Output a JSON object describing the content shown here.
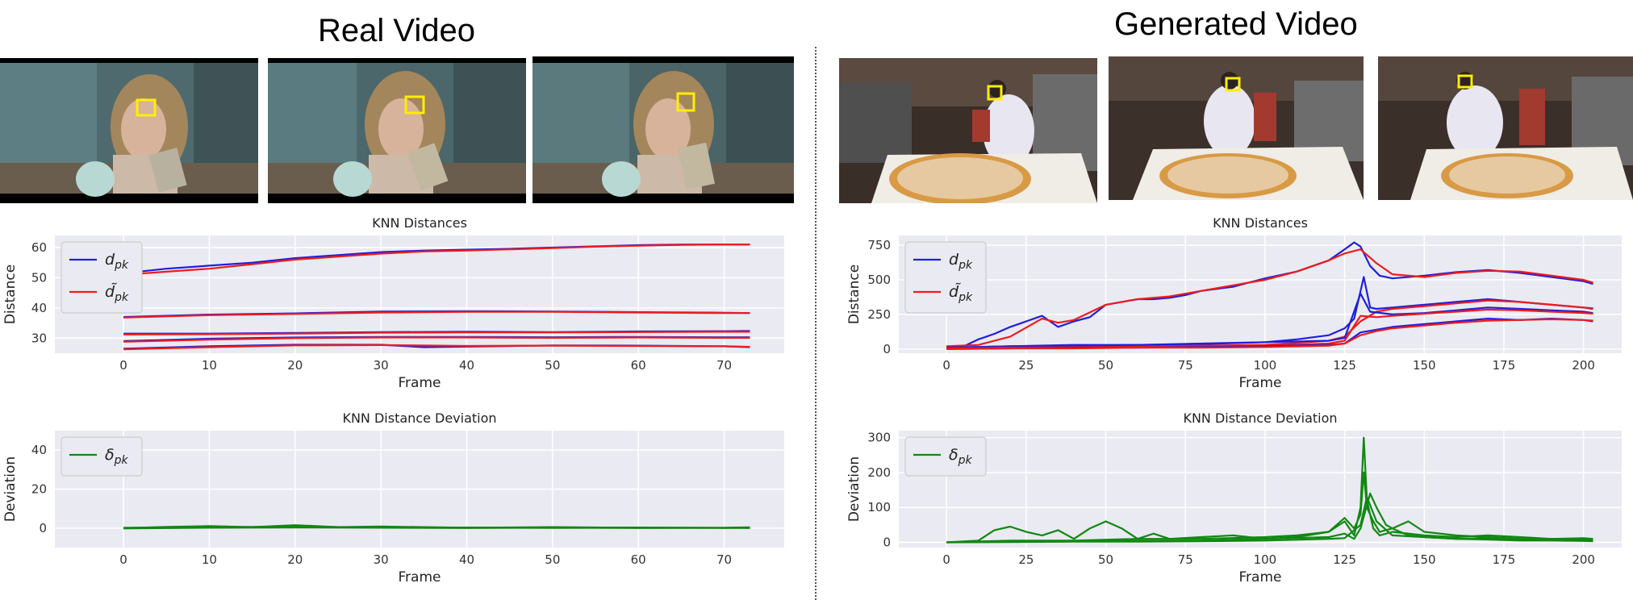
{
  "panels": {
    "left": {
      "title": "Real Video"
    },
    "right": {
      "title": "Generated Video"
    }
  },
  "image_strips": {
    "left": [
      {
        "alt": "woman with glasses holding cup and phone, frame 1"
      },
      {
        "alt": "woman with glasses holding cup and phone, frame 2"
      },
      {
        "alt": "woman with glasses holding cup and phone, frame 3"
      }
    ],
    "right": [
      {
        "alt": "chef in kitchen with pizza, frame 1"
      },
      {
        "alt": "chef in kitchen with pizza, frame 2"
      },
      {
        "alt": "chef in kitchen with pizza, frame 3"
      }
    ]
  },
  "colors": {
    "dist": "#1f1fdd",
    "dist_gen": "#ee1c1c",
    "dev": "#118811",
    "plot_bg": "#eaeaf2",
    "box": "#ffee00"
  },
  "chart_data": [
    {
      "id": "left-dist",
      "type": "line",
      "title": "KNN Distances",
      "xlabel": "Frame",
      "ylabel": "Distance",
      "xlim": [
        -8,
        77
      ],
      "ylim": [
        25,
        64
      ],
      "xticks": [
        0,
        10,
        20,
        30,
        40,
        50,
        60,
        70
      ],
      "yticks": [
        30,
        40,
        50,
        60
      ],
      "grid": true,
      "legend_position": "upper-left",
      "legend": [
        {
          "label": "d",
          "sub": "pk",
          "color": "dist"
        },
        {
          "label": "d̃",
          "sub": "pk",
          "color": "dist_gen"
        }
      ],
      "series": [
        {
          "color": "dist",
          "x": [
            0,
            5,
            10,
            15,
            20,
            25,
            30,
            35,
            40,
            45,
            50,
            55,
            60,
            65,
            70,
            73
          ],
          "y": [
            51.5,
            53,
            54,
            55,
            56.5,
            57.5,
            58.5,
            59,
            59.3,
            59.6,
            60,
            60.4,
            60.8,
            61,
            61,
            61
          ]
        },
        {
          "color": "dist_gen",
          "x": [
            0,
            5,
            10,
            15,
            20,
            25,
            30,
            35,
            40,
            45,
            50,
            55,
            60,
            65,
            70,
            73
          ],
          "y": [
            51,
            52,
            53,
            54.5,
            56,
            57,
            58,
            58.7,
            59,
            59.4,
            59.8,
            60.3,
            60.6,
            60.9,
            61,
            61
          ]
        },
        {
          "color": "dist",
          "x": [
            0,
            10,
            20,
            30,
            40,
            50,
            60,
            70,
            73
          ],
          "y": [
            37,
            37.8,
            38.2,
            38.8,
            38.9,
            38.8,
            38.6,
            38.4,
            38.3
          ]
        },
        {
          "color": "dist_gen",
          "x": [
            0,
            10,
            20,
            30,
            40,
            50,
            60,
            70,
            73
          ],
          "y": [
            36.8,
            37.6,
            38,
            38.5,
            38.7,
            38.7,
            38.5,
            38.3,
            38.3
          ]
        },
        {
          "color": "dist",
          "x": [
            0,
            10,
            20,
            30,
            40,
            50,
            60,
            70,
            73
          ],
          "y": [
            31.5,
            31.5,
            31.7,
            32,
            32.1,
            32,
            32.2,
            32.3,
            32.4
          ]
        },
        {
          "color": "dist_gen",
          "x": [
            0,
            10,
            20,
            30,
            40,
            50,
            60,
            70,
            73
          ],
          "y": [
            31.2,
            31.3,
            31.5,
            31.8,
            31.9,
            31.9,
            32,
            32.1,
            32.1
          ]
        },
        {
          "color": "dist",
          "x": [
            0,
            10,
            20,
            30,
            40,
            50,
            60,
            70,
            73
          ],
          "y": [
            29,
            29.8,
            30.2,
            30.4,
            30.4,
            30.3,
            30.4,
            30.3,
            30.3
          ]
        },
        {
          "color": "dist_gen",
          "x": [
            0,
            10,
            20,
            30,
            40,
            50,
            60,
            70,
            73
          ],
          "y": [
            28.8,
            29.5,
            30,
            30.2,
            30.2,
            30.1,
            30.2,
            30.1,
            30.1
          ]
        },
        {
          "color": "dist",
          "x": [
            0,
            10,
            20,
            30,
            35,
            40,
            50,
            60,
            70,
            73
          ],
          "y": [
            26.5,
            27.3,
            27.8,
            27.8,
            27,
            27.2,
            27.6,
            27.5,
            27.3,
            27
          ]
        },
        {
          "color": "dist_gen",
          "x": [
            0,
            10,
            20,
            30,
            40,
            50,
            60,
            70,
            73
          ],
          "y": [
            26.3,
            27,
            27.6,
            27.7,
            27.4,
            27.5,
            27.4,
            27.3,
            27.1
          ]
        }
      ]
    },
    {
      "id": "left-dev",
      "type": "line",
      "title": "KNN Distance Deviation",
      "xlabel": "Frame",
      "ylabel": "Deviation",
      "xlim": [
        -8,
        77
      ],
      "ylim": [
        -10,
        50
      ],
      "xticks": [
        0,
        10,
        20,
        30,
        40,
        50,
        60,
        70
      ],
      "yticks": [
        0,
        20,
        40
      ],
      "grid": true,
      "legend_position": "upper-left",
      "legend": [
        {
          "label": "δ",
          "sub": "pk",
          "color": "dev"
        }
      ],
      "series": [
        {
          "color": "dev",
          "x": [
            0,
            5,
            10,
            15,
            20,
            25,
            30,
            40,
            50,
            60,
            70,
            73
          ],
          "y": [
            0,
            0.6,
            1,
            0.5,
            1.5,
            0.5,
            0.8,
            0.2,
            0.5,
            0.2,
            0.2,
            0.4
          ]
        },
        {
          "color": "dev",
          "x": [
            0,
            10,
            20,
            30,
            40,
            50,
            60,
            70,
            73
          ],
          "y": [
            0.2,
            0.4,
            0.8,
            0.3,
            0.3,
            0.1,
            0.3,
            0.1,
            0.3
          ]
        },
        {
          "color": "dev",
          "x": [
            0,
            10,
            20,
            30,
            40,
            50,
            60,
            70,
            73
          ],
          "y": [
            -0.2,
            0.2,
            0.3,
            0.2,
            0,
            0.2,
            0,
            0.1,
            0
          ]
        }
      ]
    },
    {
      "id": "right-dist",
      "type": "line",
      "title": "KNN Distances",
      "xlabel": "Frame",
      "ylabel": "Distance",
      "xlim": [
        -15,
        212
      ],
      "ylim": [
        -30,
        820
      ],
      "xticks": [
        0,
        25,
        50,
        75,
        100,
        125,
        150,
        175,
        200
      ],
      "yticks": [
        0,
        250,
        500,
        750
      ],
      "grid": true,
      "legend_position": "upper-left",
      "legend": [
        {
          "label": "d",
          "sub": "pk",
          "color": "dist"
        },
        {
          "label": "d̃",
          "sub": "pk",
          "color": "dist_gen"
        }
      ],
      "series": [
        {
          "color": "dist",
          "x": [
            0,
            5,
            10,
            15,
            20,
            25,
            30,
            35,
            40,
            45,
            50,
            55,
            60,
            65,
            70,
            75,
            80,
            90,
            100,
            110,
            120,
            125,
            128,
            130,
            133,
            136,
            140,
            150,
            160,
            170,
            180,
            190,
            200,
            203
          ],
          "y": [
            20,
            15,
            70,
            110,
            160,
            200,
            240,
            160,
            200,
            230,
            320,
            340,
            360,
            360,
            370,
            390,
            420,
            450,
            510,
            560,
            640,
            720,
            770,
            740,
            600,
            530,
            510,
            530,
            555,
            570,
            550,
            520,
            490,
            470
          ]
        },
        {
          "color": "dist_gen",
          "x": [
            0,
            10,
            20,
            30,
            35,
            40,
            50,
            60,
            70,
            80,
            90,
            100,
            110,
            120,
            125,
            130,
            135,
            140,
            150,
            160,
            170,
            180,
            190,
            200,
            203
          ],
          "y": [
            20,
            30,
            90,
            220,
            190,
            210,
            320,
            360,
            380,
            420,
            460,
            500,
            560,
            640,
            690,
            720,
            620,
            540,
            520,
            550,
            565,
            560,
            530,
            500,
            480
          ]
        },
        {
          "color": "dist",
          "x": [
            0,
            20,
            40,
            60,
            80,
            100,
            110,
            120,
            125,
            128,
            131,
            133,
            135,
            140,
            150,
            160,
            170,
            180,
            190,
            200,
            203
          ],
          "y": [
            10,
            20,
            30,
            30,
            35,
            50,
            70,
            100,
            150,
            220,
            520,
            300,
            290,
            300,
            320,
            340,
            360,
            340,
            320,
            300,
            290
          ]
        },
        {
          "color": "dist_gen",
          "x": [
            0,
            20,
            40,
            60,
            80,
            100,
            120,
            125,
            130,
            135,
            140,
            150,
            160,
            170,
            180,
            190,
            200,
            203
          ],
          "y": [
            5,
            10,
            15,
            20,
            25,
            30,
            60,
            90,
            200,
            270,
            290,
            310,
            330,
            350,
            340,
            320,
            300,
            295
          ]
        },
        {
          "color": "dist",
          "x": [
            0,
            20,
            40,
            60,
            80,
            100,
            120,
            125,
            130,
            133,
            140,
            150,
            160,
            170,
            180,
            190,
            200,
            203
          ],
          "y": [
            10,
            20,
            25,
            30,
            40,
            50,
            60,
            80,
            400,
            270,
            250,
            260,
            280,
            300,
            290,
            280,
            270,
            260
          ]
        },
        {
          "color": "dist_gen",
          "x": [
            0,
            20,
            40,
            60,
            80,
            100,
            120,
            125,
            130,
            135,
            140,
            150,
            160,
            170,
            180,
            190,
            200,
            203
          ],
          "y": [
            5,
            10,
            15,
            15,
            20,
            25,
            40,
            60,
            240,
            230,
            240,
            255,
            270,
            285,
            280,
            270,
            260,
            255
          ]
        },
        {
          "color": "dist",
          "x": [
            0,
            20,
            40,
            60,
            80,
            100,
            120,
            125,
            130,
            135,
            140,
            150,
            160,
            170,
            180,
            190,
            200,
            203
          ],
          "y": [
            0,
            5,
            10,
            10,
            15,
            20,
            30,
            40,
            120,
            140,
            160,
            180,
            200,
            220,
            210,
            220,
            210,
            200
          ]
        },
        {
          "color": "dist_gen",
          "x": [
            0,
            20,
            40,
            60,
            80,
            100,
            120,
            125,
            130,
            135,
            140,
            150,
            160,
            170,
            180,
            190,
            200,
            203
          ],
          "y": [
            0,
            5,
            5,
            10,
            10,
            15,
            25,
            40,
            100,
            130,
            150,
            170,
            190,
            205,
            210,
            215,
            210,
            205
          ]
        }
      ]
    },
    {
      "id": "right-dev",
      "type": "line",
      "title": "KNN Distance Deviation",
      "xlabel": "Frame",
      "ylabel": "Deviation",
      "xlim": [
        -15,
        212
      ],
      "ylim": [
        -15,
        320
      ],
      "xticks": [
        0,
        25,
        50,
        75,
        100,
        125,
        150,
        175,
        200
      ],
      "yticks": [
        0,
        100,
        200,
        300
      ],
      "grid": true,
      "legend_position": "upper-left",
      "legend": [
        {
          "label": "δ",
          "sub": "pk",
          "color": "dev"
        }
      ],
      "series": [
        {
          "color": "dev",
          "x": [
            0,
            10,
            15,
            20,
            25,
            30,
            35,
            40,
            45,
            50,
            55,
            60,
            65,
            70,
            80,
            90,
            100,
            110,
            120,
            125,
            128,
            130,
            131,
            132,
            134,
            136,
            140,
            150,
            160,
            170,
            180,
            190,
            200,
            203
          ],
          "y": [
            0,
            5,
            35,
            45,
            30,
            20,
            35,
            10,
            40,
            60,
            40,
            10,
            25,
            10,
            15,
            20,
            10,
            15,
            30,
            60,
            20,
            100,
            300,
            120,
            40,
            20,
            30,
            20,
            15,
            20,
            15,
            10,
            12,
            10
          ]
        },
        {
          "color": "dev",
          "x": [
            0,
            20,
            40,
            60,
            80,
            100,
            110,
            120,
            125,
            128,
            130,
            131,
            132,
            134,
            136,
            140,
            145,
            150,
            160,
            170,
            180,
            190,
            200,
            203
          ],
          "y": [
            0,
            5,
            5,
            10,
            10,
            15,
            20,
            30,
            70,
            40,
            80,
            200,
            100,
            60,
            30,
            40,
            60,
            30,
            20,
            15,
            10,
            10,
            8,
            8
          ]
        },
        {
          "color": "dev",
          "x": [
            0,
            20,
            40,
            60,
            80,
            100,
            120,
            125,
            128,
            130,
            133,
            135,
            138,
            140,
            145,
            150,
            160,
            170,
            180,
            190,
            200,
            203
          ],
          "y": [
            0,
            2,
            3,
            5,
            5,
            10,
            15,
            25,
            10,
            40,
            140,
            100,
            50,
            40,
            20,
            15,
            10,
            12,
            8,
            10,
            6,
            5
          ]
        },
        {
          "color": "dev",
          "x": [
            0,
            20,
            40,
            60,
            80,
            100,
            120,
            125,
            130,
            132,
            135,
            140,
            150,
            160,
            170,
            180,
            190,
            200,
            203
          ],
          "y": [
            0,
            1,
            2,
            2,
            3,
            5,
            10,
            12,
            50,
            130,
            60,
            20,
            15,
            10,
            8,
            5,
            5,
            4,
            3
          ]
        }
      ]
    }
  ]
}
